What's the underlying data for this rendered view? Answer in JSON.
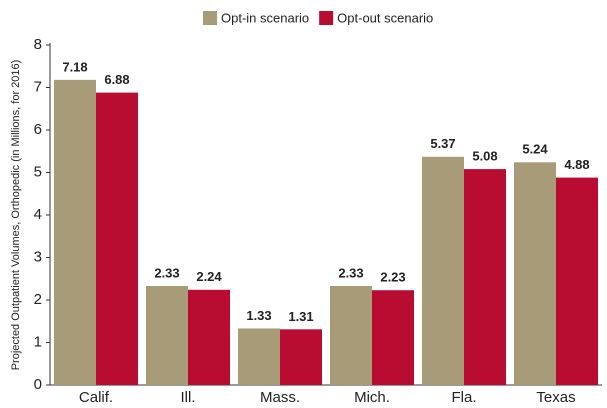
{
  "chart_data": {
    "type": "bar",
    "y_label": "Projected Outpatient Volumes, Orthopedic (in Millions, for 2016)",
    "categories": [
      "Calif.",
      "Ill.",
      "Mass.",
      "Mich.",
      "Fla.",
      "Texas"
    ],
    "series": [
      {
        "name": "Opt-in scenario",
        "color": "#a89b78",
        "values": [
          7.18,
          2.33,
          1.33,
          2.33,
          5.37,
          5.24
        ]
      },
      {
        "name": "Opt-out scenario",
        "color": "#b80d30",
        "values": [
          6.88,
          2.24,
          1.31,
          2.23,
          5.08,
          4.88
        ]
      }
    ],
    "ylim": [
      0,
      8
    ],
    "yticks": [
      0,
      1,
      2,
      3,
      4,
      5,
      6,
      7,
      8
    ],
    "legend": "top"
  }
}
